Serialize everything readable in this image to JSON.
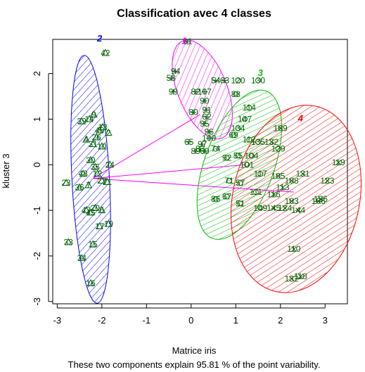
{
  "chart_data": {
    "type": "scatter",
    "title": "Classification avec 4 classes",
    "xlabel": "Matrice iris",
    "ylabel": "kluster 3",
    "subtitle": "These two components explain 95.81 % of the point variability.",
    "xlim": [
      -3.1,
      3.5
    ],
    "ylim": [
      -3.05,
      2.75
    ],
    "xticks": [
      -3,
      -2,
      -1,
      0,
      1,
      2,
      3
    ],
    "yticks": [
      -3,
      -2,
      -1,
      0,
      1,
      2
    ],
    "grid": false,
    "clusters": [
      {
        "id": "2",
        "label": "2",
        "symbol": "triangle",
        "color": "#0000ff",
        "pointcolor": "#006400",
        "center": [
          -2.2,
          -0.3
        ],
        "ellipse": {
          "cx": -2.25,
          "cy": -0.32,
          "rx": 0.42,
          "ry": 2.72,
          "angle": -3
        },
        "label_pos": [
          -2.05,
          2.7
        ],
        "points": [
          {
            "x": -1.92,
            "y": 2.45,
            "label": "42"
          },
          {
            "x": -2.28,
            "y": 1.0,
            "label": "14"
          },
          {
            "x": -2.45,
            "y": 0.95,
            "label": "39"
          },
          {
            "x": -2.18,
            "y": 1.1,
            "label": "9"
          },
          {
            "x": -2.05,
            "y": 0.75,
            "label": "46"
          },
          {
            "x": -1.98,
            "y": 0.82,
            "label": "13"
          },
          {
            "x": -2.35,
            "y": 0.55,
            "label": "4"
          },
          {
            "x": -2.2,
            "y": 0.45,
            "label": "31"
          },
          {
            "x": -2.12,
            "y": 0.6,
            "label": "26"
          },
          {
            "x": -1.85,
            "y": 0.7,
            "label": "2"
          },
          {
            "x": -2.0,
            "y": 0.4,
            "label": "10"
          },
          {
            "x": -2.25,
            "y": 0.1,
            "label": "30"
          },
          {
            "x": -2.15,
            "y": -0.05,
            "label": "35"
          },
          {
            "x": -1.82,
            "y": 0.0,
            "label": "24"
          },
          {
            "x": -2.42,
            "y": -0.2,
            "label": "48"
          },
          {
            "x": -2.8,
            "y": -0.4,
            "label": "23"
          },
          {
            "x": -2.5,
            "y": -0.5,
            "label": "36"
          },
          {
            "x": -2.3,
            "y": -0.45,
            "label": "7"
          },
          {
            "x": -2.0,
            "y": -0.35,
            "label": "22"
          },
          {
            "x": -1.88,
            "y": -0.38,
            "label": "21"
          },
          {
            "x": -2.1,
            "y": -0.2,
            "label": "12"
          },
          {
            "x": -2.35,
            "y": -1.0,
            "label": "47"
          },
          {
            "x": -2.15,
            "y": -0.95,
            "label": "20"
          },
          {
            "x": -2.25,
            "y": -1.05,
            "label": "45"
          },
          {
            "x": -2.0,
            "y": -1.0,
            "label": "6"
          },
          {
            "x": -2.05,
            "y": -1.35,
            "label": "17"
          },
          {
            "x": -1.85,
            "y": -1.3,
            "label": "19"
          },
          {
            "x": -2.75,
            "y": -1.7,
            "label": "33"
          },
          {
            "x": -2.2,
            "y": -1.75,
            "label": "15"
          },
          {
            "x": -2.45,
            "y": -2.05,
            "label": "34"
          },
          {
            "x": -2.25,
            "y": -2.6,
            "label": "16"
          }
        ]
      },
      {
        "id": "1",
        "label": "1",
        "symbol": "plus",
        "color": "#ff00ff",
        "pointcolor": "#006400",
        "center": [
          0.2,
          1.1
        ],
        "ellipse": {
          "cx": 0.25,
          "cy": 1.65,
          "rx": 0.55,
          "ry": 1.15,
          "angle": -22
        },
        "label_pos": [
          -0.15,
          2.65
        ],
        "points": [
          {
            "x": -0.08,
            "y": 2.7,
            "label": "61"
          },
          {
            "x": -0.35,
            "y": 2.05,
            "label": "94"
          },
          {
            "x": -0.45,
            "y": 1.9,
            "label": "58"
          },
          {
            "x": -0.4,
            "y": 1.6,
            "label": "99"
          },
          {
            "x": 0.1,
            "y": 1.6,
            "label": "82"
          },
          {
            "x": 0.3,
            "y": 1.6,
            "label": "107"
          },
          {
            "x": 0.55,
            "y": 1.85,
            "label": "54"
          },
          {
            "x": 0.75,
            "y": 1.85,
            "label": "63"
          },
          {
            "x": 0.3,
            "y": 1.4,
            "label": "90"
          },
          {
            "x": 0.05,
            "y": 1.15,
            "label": "80"
          },
          {
            "x": 0.35,
            "y": 1.2,
            "label": "91"
          },
          {
            "x": 0.35,
            "y": 1.05,
            "label": "62"
          },
          {
            "x": 0.3,
            "y": 0.9,
            "label": "95"
          },
          {
            "x": 0.4,
            "y": 0.72,
            "label": "96"
          },
          {
            "x": 0.4,
            "y": 0.58,
            "label": "100"
          },
          {
            "x": -0.05,
            "y": 0.5,
            "label": "65"
          },
          {
            "x": 0.25,
            "y": 0.45,
            "label": "97"
          },
          {
            "x": 0.1,
            "y": 0.3,
            "label": "89"
          },
          {
            "x": 0.3,
            "y": 0.3,
            "label": "60"
          },
          {
            "x": 0.2,
            "y": 0.35,
            "label": "83"
          }
        ]
      },
      {
        "id": "3",
        "label": "3",
        "symbol": "circle",
        "color": "#00bb00",
        "pointcolor": "#006400",
        "center": [
          1.2,
          0.0
        ],
        "ellipse": {
          "cx": 1.08,
          "cy": 0.0,
          "rx": 0.78,
          "ry": 1.72,
          "angle": 20
        },
        "label_pos": [
          1.55,
          1.95
        ],
        "points": [
          {
            "x": 1.05,
            "y": 1.85,
            "label": "120"
          },
          {
            "x": 1.5,
            "y": 1.85,
            "label": "130"
          },
          {
            "x": 1.0,
            "y": 1.55,
            "label": "88"
          },
          {
            "x": 1.3,
            "y": 1.25,
            "label": "114"
          },
          {
            "x": 1.2,
            "y": 1.0,
            "label": "147"
          },
          {
            "x": 1.05,
            "y": 0.8,
            "label": "134"
          },
          {
            "x": 0.95,
            "y": 0.65,
            "label": "69"
          },
          {
            "x": 1.3,
            "y": 0.55,
            "label": "112"
          },
          {
            "x": 1.5,
            "y": 0.5,
            "label": "135"
          },
          {
            "x": 0.55,
            "y": 0.35,
            "label": "74"
          },
          {
            "x": 0.8,
            "y": 0.15,
            "label": "92"
          },
          {
            "x": 1.05,
            "y": 0.2,
            "label": "55"
          },
          {
            "x": 1.35,
            "y": 0.2,
            "label": "104"
          },
          {
            "x": 1.95,
            "y": 0.35,
            "label": "129"
          },
          {
            "x": 0.85,
            "y": -0.35,
            "label": "71"
          },
          {
            "x": 1.1,
            "y": -0.4,
            "label": "57"
          },
          {
            "x": 1.55,
            "y": -0.2,
            "label": "117"
          },
          {
            "x": 1.45,
            "y": -0.6,
            "label": "111"
          },
          {
            "x": 0.55,
            "y": -0.75,
            "label": "86"
          },
          {
            "x": 0.8,
            "y": -0.7,
            "label": "67"
          },
          {
            "x": 1.1,
            "y": -0.85,
            "label": "51"
          },
          {
            "x": 1.55,
            "y": -0.95,
            "label": "149"
          },
          {
            "x": 1.25,
            "y": 0.0,
            "label": "101"
          }
        ]
      },
      {
        "id": "4",
        "label": "4",
        "symbol": "cross",
        "color": "#ff0000",
        "pointcolor": "#006400",
        "center": [
          2.3,
          -0.6
        ],
        "ellipse": {
          "cx": 2.35,
          "cy": -0.75,
          "rx": 1.42,
          "ry": 2.08,
          "angle": 12
        },
        "label_pos": [
          2.45,
          0.95
        ],
        "points": [
          {
            "x": 2.0,
            "y": 0.8,
            "label": "109"
          },
          {
            "x": 1.8,
            "y": 0.5,
            "label": "132"
          },
          {
            "x": 3.3,
            "y": 0.05,
            "label": "119"
          },
          {
            "x": 2.5,
            "y": -0.2,
            "label": "131"
          },
          {
            "x": 1.95,
            "y": -0.25,
            "label": "105"
          },
          {
            "x": 2.25,
            "y": -0.35,
            "label": "108"
          },
          {
            "x": 3.05,
            "y": -0.35,
            "label": "123"
          },
          {
            "x": 2.05,
            "y": -0.5,
            "label": "113"
          },
          {
            "x": 1.85,
            "y": -0.65,
            "label": "116"
          },
          {
            "x": 2.25,
            "y": -0.8,
            "label": "103"
          },
          {
            "x": 2.85,
            "y": -0.8,
            "label": "106"
          },
          {
            "x": 2.9,
            "y": -0.75,
            "label": "136"
          },
          {
            "x": 1.85,
            "y": -0.95,
            "label": "145"
          },
          {
            "x": 2.1,
            "y": -0.95,
            "label": "124"
          },
          {
            "x": 2.4,
            "y": -1.0,
            "label": "144"
          },
          {
            "x": 2.3,
            "y": -1.85,
            "label": "110"
          },
          {
            "x": 2.45,
            "y": -2.45,
            "label": "118"
          },
          {
            "x": 2.25,
            "y": -2.5,
            "label": "132"
          }
        ]
      }
    ],
    "connecting_lines": true
  }
}
